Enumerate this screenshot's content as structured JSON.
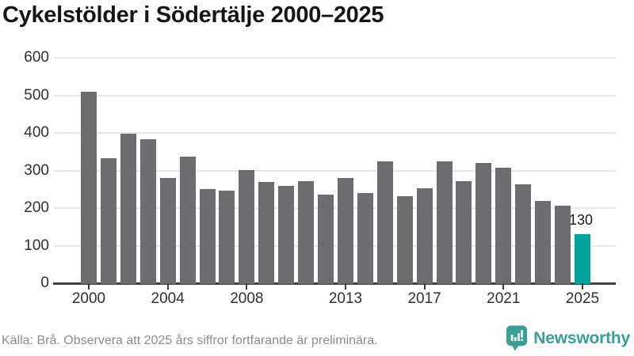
{
  "title": "Cykelstölder i Södertälje 2000–2025",
  "source_note": "Källa: Brå. Observera att 2025 års siffror fortfarande är preliminära.",
  "branding": {
    "wordmark": "Newsworthy",
    "icon": "newsworthy-speech-bubble-bar-chart-icon"
  },
  "colors": {
    "bar": "#6c6c71",
    "highlight": "#00a39b",
    "axis": "#404045",
    "gridline": "#e7e7e7",
    "title_text": "#161616",
    "axis_label": "#303030",
    "value_label": "#1b1b1b",
    "source_text": "#8c8c8c",
    "brand": "#399f96"
  },
  "chart_data": {
    "type": "bar",
    "title": "Cykelstölder i Södertälje 2000–2025",
    "x": [
      2000,
      2001,
      2002,
      2003,
      2004,
      2005,
      2006,
      2007,
      2008,
      2009,
      2010,
      2011,
      2012,
      2013,
      2014,
      2015,
      2016,
      2017,
      2018,
      2019,
      2020,
      2021,
      2022,
      2023,
      2024,
      2025
    ],
    "values": [
      510,
      332,
      398,
      383,
      280,
      337,
      250,
      246,
      301,
      269,
      258,
      271,
      236,
      281,
      241,
      325,
      231,
      253,
      325,
      271,
      320,
      307,
      263,
      219,
      206,
      130
    ],
    "highlight": {
      "index": 25,
      "year": 2025,
      "label": "130"
    },
    "xticks": [
      2000,
      2004,
      2008,
      2013,
      2017,
      2021,
      2025
    ],
    "yticks": [
      0,
      100,
      200,
      300,
      400,
      500,
      600
    ],
    "ylim": [
      0,
      600
    ],
    "grid": "horizontal-only",
    "legend": "none"
  }
}
